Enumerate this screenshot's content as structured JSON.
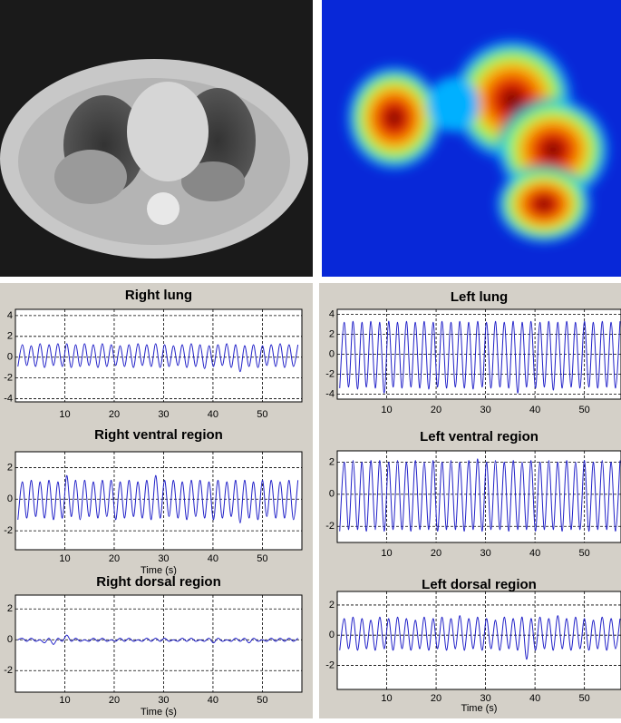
{
  "chart_data": [
    {
      "type": "line",
      "title": "Right lung",
      "xlim": [
        0,
        58
      ],
      "ylim": [
        -4.3,
        4.6
      ],
      "xticks": [
        10,
        20,
        30,
        40,
        50
      ],
      "yticks": [
        -4,
        -2,
        0,
        2,
        4
      ],
      "grid": true,
      "x": [
        0.5,
        1.4,
        2.3,
        3.2,
        4.1,
        5,
        5.9,
        6.8,
        7.7,
        8.6,
        9.5,
        10.4,
        11.3,
        12.2,
        13.1,
        14,
        14.9,
        15.8,
        16.7,
        17.6,
        18.5,
        19.4,
        20.3,
        21.2,
        22.1,
        23,
        23.9,
        24.8,
        25.7,
        26.6,
        27.5,
        28.4,
        29.3,
        30.2,
        31.1,
        32,
        32.9,
        33.8,
        34.7,
        35.6,
        36.5,
        37.4,
        38.3,
        39.2,
        40.1,
        41,
        41.9,
        42.8,
        43.7,
        44.6,
        45.5,
        46.4,
        47.3,
        48.2,
        49.1,
        50,
        50.9,
        51.8,
        52.7,
        53.6,
        54.5,
        55.4,
        56.3,
        57.2
      ],
      "series": [
        {
          "color": "#1f1fc8",
          "values": [
            -0.9,
            1.2,
            -0.8,
            1.1,
            -0.9,
            1.3,
            -1.0,
            1.2,
            -0.8,
            1.3,
            -0.9,
            1.3,
            -1.0,
            1.2,
            -0.9,
            1.3,
            -0.8,
            1.2,
            -1.0,
            1.3,
            -0.9,
            1.2,
            -0.8,
            1.1,
            -0.9,
            1.2,
            -1.0,
            1.3,
            -0.8,
            1.2,
            -0.9,
            1.3,
            -1.0,
            1.2,
            -0.9,
            1.1,
            -0.8,
            1.2,
            -1.0,
            1.3,
            -0.9,
            1.2,
            -1.1,
            1.1,
            -0.9,
            1.2,
            -0.8,
            1.3,
            -1.0,
            1.2,
            -1.4,
            1.1,
            -0.9,
            1.2,
            -1.0,
            1.1,
            -0.8,
            1.2,
            -0.9,
            1.3,
            -1.0,
            1.2,
            -0.9,
            1.2
          ]
        }
      ]
    },
    {
      "type": "line",
      "title": "Right ventral region",
      "xlabel": "Time (s)",
      "xlim": [
        0,
        58
      ],
      "ylim": [
        -3.2,
        3
      ],
      "xticks": [
        10,
        20,
        30,
        40,
        50
      ],
      "yticks": [
        -2,
        0,
        2
      ],
      "grid": true,
      "x": [
        0.5,
        1.4,
        2.3,
        3.2,
        4.1,
        5,
        5.9,
        6.8,
        7.7,
        8.6,
        9.5,
        10.4,
        11.3,
        12.2,
        13.1,
        14,
        14.9,
        15.8,
        16.7,
        17.6,
        18.5,
        19.4,
        20.3,
        21.2,
        22.1,
        23,
        23.9,
        24.8,
        25.7,
        26.6,
        27.5,
        28.4,
        29.3,
        30.2,
        31.1,
        32,
        32.9,
        33.8,
        34.7,
        35.6,
        36.5,
        37.4,
        38.3,
        39.2,
        40.1,
        41,
        41.9,
        42.8,
        43.7,
        44.6,
        45.5,
        46.4,
        47.3,
        48.2,
        49.1,
        50,
        50.9,
        51.8,
        52.7,
        53.6,
        54.5,
        55.4,
        56.3,
        57.2
      ],
      "series": [
        {
          "color": "#1f1fc8",
          "values": [
            -1.3,
            1.1,
            -1.2,
            1.2,
            -1.1,
            1.1,
            -1.2,
            1.2,
            -1.3,
            1.1,
            -1.2,
            1.5,
            -1.1,
            1.2,
            -1.3,
            1.2,
            -1.1,
            1.1,
            -1.2,
            1.2,
            -1.1,
            1.2,
            -1.3,
            1.1,
            -1.2,
            1.2,
            -1.1,
            1.1,
            -1.2,
            1.2,
            -1.3,
            1.5,
            -1.2,
            1.2,
            -1.1,
            1.2,
            -1.2,
            1.1,
            -1.3,
            1.2,
            -1.1,
            1.2,
            -1.2,
            1.1,
            -1.3,
            1.2,
            -1.2,
            1.1,
            -1.1,
            1.2,
            -1.5,
            1.2,
            -1.2,
            1.1,
            -1.3,
            1.2,
            -1.1,
            1.2,
            -1.2,
            1.1,
            -1.2,
            1.2,
            -1.3,
            1.2
          ]
        }
      ]
    },
    {
      "type": "line",
      "title": "Right dorsal region",
      "xlabel": "Time (s)",
      "xlim": [
        0,
        58
      ],
      "ylim": [
        -3.4,
        2.9
      ],
      "xticks": [
        10,
        20,
        30,
        40,
        50
      ],
      "yticks": [
        -2,
        0,
        2
      ],
      "grid": true,
      "x": [
        0.5,
        1.4,
        2.3,
        3.2,
        4.1,
        5,
        5.9,
        6.8,
        7.7,
        8.6,
        9.5,
        10.4,
        11.3,
        12.2,
        13.1,
        14,
        14.9,
        15.8,
        16.7,
        17.6,
        18.5,
        19.4,
        20.3,
        21.2,
        22.1,
        23,
        23.9,
        24.8,
        25.7,
        26.6,
        27.5,
        28.4,
        29.3,
        30.2,
        31.1,
        32,
        32.9,
        33.8,
        34.7,
        35.6,
        36.5,
        37.4,
        38.3,
        39.2,
        40.1,
        41,
        41.9,
        42.8,
        43.7,
        44.6,
        45.5,
        46.4,
        47.3,
        48.2,
        49.1,
        50,
        50.9,
        51.8,
        52.7,
        53.6,
        54.5,
        55.4,
        56.3,
        57.2
      ],
      "series": [
        {
          "color": "#1f1fc8",
          "values": [
            0.0,
            0.1,
            -0.1,
            0.1,
            -0.1,
            0.0,
            -0.2,
            0.1,
            -0.3,
            0.1,
            -0.1,
            0.3,
            -0.1,
            0.1,
            -0.1,
            0.0,
            -0.1,
            0.1,
            -0.1,
            0.1,
            -0.1,
            0.0,
            -0.1,
            0.1,
            -0.1,
            0.1,
            -0.1,
            0.0,
            -0.1,
            0.1,
            -0.1,
            0.1,
            -0.1,
            0.1,
            -0.1,
            0.0,
            -0.1,
            0.1,
            -0.1,
            0.1,
            -0.1,
            0.0,
            -0.1,
            0.1,
            -0.2,
            0.1,
            -0.1,
            0.0,
            -0.1,
            0.1,
            -0.1,
            0.1,
            -0.2,
            0.1,
            -0.1,
            0.0,
            -0.1,
            0.1,
            -0.1,
            0.1,
            -0.1,
            0.1,
            -0.1,
            0.1
          ]
        }
      ]
    },
    {
      "type": "line",
      "title": "Left lung",
      "xlim": [
        0,
        57.4
      ],
      "ylim": [
        -4.5,
        4.5
      ],
      "xticks": [
        10,
        20,
        30,
        40,
        50
      ],
      "yticks": [
        -4,
        -2,
        0,
        2,
        4
      ],
      "grid": true,
      "x": [
        0.5,
        1.4,
        2.3,
        3.2,
        4.1,
        5,
        5.9,
        6.8,
        7.7,
        8.6,
        9.5,
        10.4,
        11.3,
        12.2,
        13.1,
        14,
        14.9,
        15.8,
        16.7,
        17.6,
        18.5,
        19.4,
        20.3,
        21.2,
        22.1,
        23,
        23.9,
        24.8,
        25.7,
        26.6,
        27.5,
        28.4,
        29.3,
        30.2,
        31.1,
        32,
        32.9,
        33.8,
        34.7,
        35.6,
        36.5,
        37.4,
        38.3,
        39.2,
        40.1,
        41,
        41.9,
        42.8,
        43.7,
        44.6,
        45.5,
        46.4,
        47.3,
        48.2,
        49.1,
        50,
        50.9,
        51.8,
        52.7,
        53.6,
        54.5,
        55.4,
        56.3,
        57.2
      ],
      "series": [
        {
          "color": "#1f1fc8",
          "values": [
            -3.4,
            3.2,
            -3.3,
            3.3,
            -3.5,
            3.2,
            -3.3,
            3.3,
            -3.4,
            3.2,
            -3.9,
            3.3,
            -3.3,
            3.2,
            -3.4,
            3.3,
            -3.3,
            3.2,
            -3.4,
            3.3,
            -3.5,
            3.2,
            -3.3,
            3.3,
            -3.4,
            3.2,
            -3.3,
            3.3,
            -3.4,
            3.2,
            -3.5,
            3.3,
            -3.3,
            3.2,
            -3.4,
            3.3,
            -3.3,
            3.2,
            -3.4,
            3.3,
            -3.9,
            3.2,
            -3.3,
            3.3,
            -3.4,
            3.2,
            -3.3,
            3.3,
            -3.6,
            3.2,
            -3.4,
            3.3,
            -3.3,
            3.2,
            -3.4,
            3.3,
            -3.3,
            3.2,
            -3.4,
            3.3,
            -3.3,
            3.2,
            -3.4,
            3.3
          ]
        }
      ]
    },
    {
      "type": "line",
      "title": "Left ventral region",
      "xlim": [
        0,
        57.4
      ],
      "ylim": [
        -3,
        2.7
      ],
      "xticks": [
        10,
        20,
        30,
        40,
        50
      ],
      "yticks": [
        -2,
        0,
        2
      ],
      "grid": true,
      "x": [
        0.5,
        1.4,
        2.3,
        3.2,
        4.1,
        5,
        5.9,
        6.8,
        7.7,
        8.6,
        9.5,
        10.4,
        11.3,
        12.2,
        13.1,
        14,
        14.9,
        15.8,
        16.7,
        17.6,
        18.5,
        19.4,
        20.3,
        21.2,
        22.1,
        23,
        23.9,
        24.8,
        25.7,
        26.6,
        27.5,
        28.4,
        29.3,
        30.2,
        31.1,
        32,
        32.9,
        33.8,
        34.7,
        35.6,
        36.5,
        37.4,
        38.3,
        39.2,
        40.1,
        41,
        41.9,
        42.8,
        43.7,
        44.6,
        45.5,
        46.4,
        47.3,
        48.2,
        49.1,
        50,
        50.9,
        51.8,
        52.7,
        53.6,
        54.5,
        55.4,
        56.3,
        57.2
      ],
      "series": [
        {
          "color": "#1f1fc8",
          "values": [
            -2.3,
            2.0,
            -2.2,
            2.1,
            -2.2,
            2.0,
            -2.3,
            2.1,
            -2.2,
            2.1,
            -2.3,
            2.0,
            -2.2,
            2.1,
            -2.2,
            2.0,
            -2.3,
            2.1,
            -2.2,
            2.0,
            -2.2,
            2.1,
            -2.3,
            2.0,
            -2.2,
            2.1,
            -2.2,
            2.0,
            -2.3,
            2.1,
            -2.2,
            2.2,
            -2.3,
            2.0,
            -2.2,
            2.1,
            -2.2,
            2.0,
            -2.3,
            2.1,
            -2.2,
            2.0,
            -2.2,
            2.1,
            -2.3,
            2.0,
            -2.2,
            2.1,
            -2.2,
            2.0,
            -2.3,
            2.1,
            -2.2,
            2.0,
            -2.2,
            2.1,
            -2.3,
            2.0,
            -2.2,
            2.1,
            -2.2,
            2.0,
            -2.3,
            2.1
          ]
        }
      ]
    },
    {
      "type": "line",
      "title": "Left dorsal region",
      "xlabel": "Time (s)",
      "xlim": [
        0,
        57.4
      ],
      "ylim": [
        -3.6,
        2.9
      ],
      "xticks": [
        10,
        20,
        30,
        40,
        50
      ],
      "yticks": [
        -2,
        0,
        2
      ],
      "grid": true,
      "x": [
        0.5,
        1.4,
        2.3,
        3.2,
        4.1,
        5,
        5.9,
        6.8,
        7.7,
        8.6,
        9.5,
        10.4,
        11.3,
        12.2,
        13.1,
        14,
        14.9,
        15.8,
        16.7,
        17.6,
        18.5,
        19.4,
        20.3,
        21.2,
        22.1,
        23,
        23.9,
        24.8,
        25.7,
        26.6,
        27.5,
        28.4,
        29.3,
        30.2,
        31.1,
        32,
        32.9,
        33.8,
        34.7,
        35.6,
        36.5,
        37.4,
        38.3,
        39.2,
        40.1,
        41,
        41.9,
        42.8,
        43.7,
        44.6,
        45.5,
        46.4,
        47.3,
        48.2,
        49.1,
        50,
        50.9,
        51.8,
        52.7,
        53.6,
        54.5,
        55.4,
        56.3,
        57.2
      ],
      "series": [
        {
          "color": "#1f1fc8",
          "values": [
            -1.0,
            1.1,
            -0.9,
            1.2,
            -1.0,
            1.1,
            -0.9,
            1.0,
            -1.0,
            1.2,
            -0.9,
            1.1,
            -1.0,
            1.2,
            -0.9,
            1.1,
            -1.0,
            1.0,
            -0.9,
            1.2,
            -1.0,
            1.1,
            -0.9,
            1.2,
            -1.0,
            1.1,
            -0.9,
            1.3,
            -1.0,
            1.1,
            -0.9,
            1.2,
            -1.0,
            1.1,
            -0.9,
            1.0,
            -1.0,
            1.2,
            -0.9,
            1.1,
            -1.0,
            1.2,
            -1.6,
            1.1,
            -1.0,
            1.2,
            -0.9,
            1.1,
            -1.0,
            1.3,
            -0.9,
            1.1,
            -1.0,
            1.2,
            -0.9,
            1.1,
            -1.0,
            1.0,
            -0.9,
            1.2,
            -1.0,
            1.1,
            -0.9,
            1.1
          ]
        }
      ]
    }
  ]
}
